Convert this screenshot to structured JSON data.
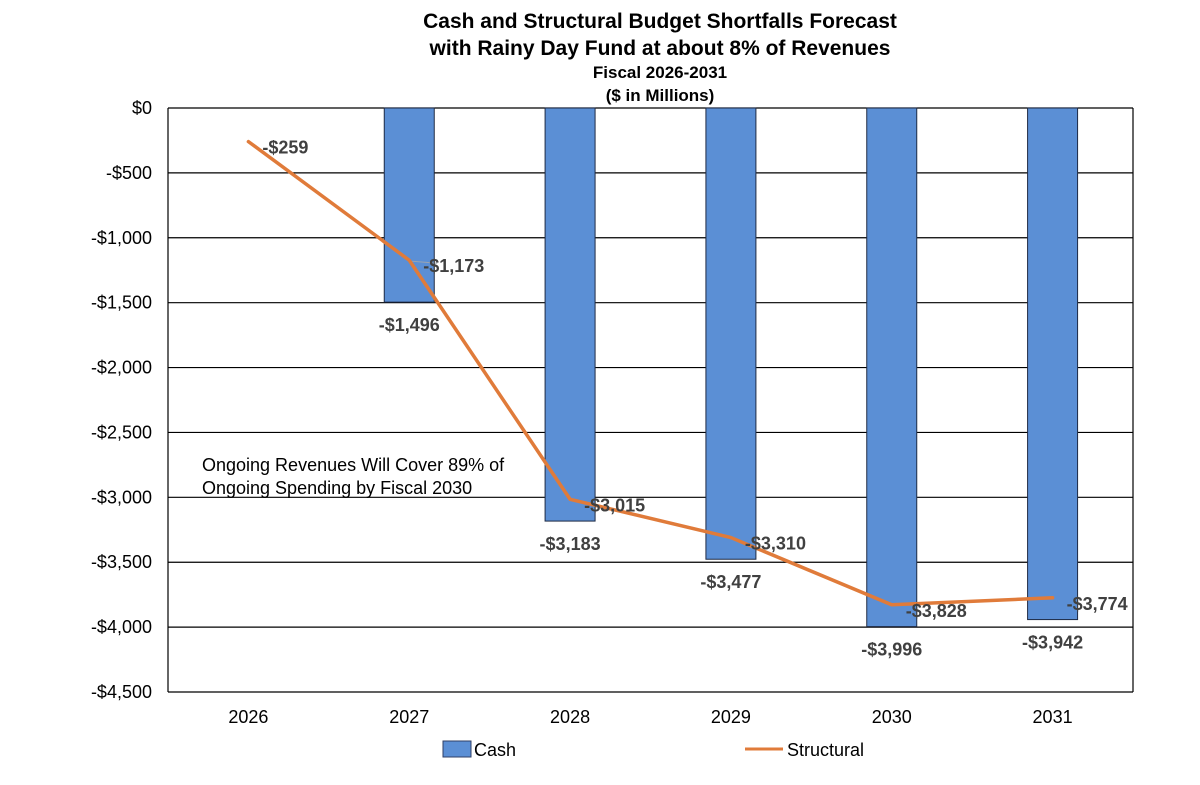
{
  "chart_data": {
    "type": "bar",
    "title": "Cash and Structural Budget Shortfalls Forecast",
    "title_line2": "with Rainy Day Fund at about 8% of Revenues",
    "subtitle": "Fiscal 2026-2031",
    "subtitle2": "($ in Millions)",
    "categories": [
      "2026",
      "2027",
      "2028",
      "2029",
      "2030",
      "2031"
    ],
    "series": [
      {
        "name": "Cash",
        "type": "bar",
        "color": "#5b8fd5",
        "values": [
          null,
          -1496,
          -3183,
          -3477,
          -3996,
          -3942
        ],
        "labels": [
          "",
          "-$1,496",
          "-$3,183",
          "-$3,477",
          "-$3,996",
          "-$3,942"
        ]
      },
      {
        "name": "Structural",
        "type": "line",
        "color": "#e07b3a",
        "values": [
          -259,
          -1173,
          -3015,
          -3310,
          -3828,
          -3774
        ],
        "labels": [
          "-$259",
          "-$1,173",
          "-$3,015",
          "-$3,310",
          "-$3,828",
          "-$3,774"
        ]
      }
    ],
    "ylim": [
      -4500,
      0
    ],
    "yticks": [
      0,
      -500,
      -1000,
      -1500,
      -2000,
      -2500,
      -3000,
      -3500,
      -4000,
      -4500
    ],
    "ytick_labels": [
      "$0",
      "-$500",
      "-$1,000",
      "-$1,500",
      "-$2,000",
      "-$2,500",
      "-$3,000",
      "-$3,500",
      "-$4,000",
      "-$4,500"
    ],
    "xlabel": "",
    "ylabel": "",
    "grid": true,
    "annotation": {
      "line1": "Ongoing Revenues Will Cover 89% of",
      "line2": "Ongoing Spending by Fiscal 2030"
    },
    "legend": {
      "position": "bottom",
      "entries": [
        "Cash",
        "Structural"
      ]
    }
  }
}
